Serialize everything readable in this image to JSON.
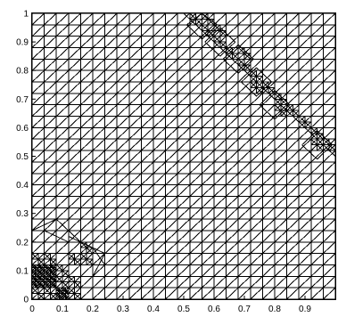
{
  "figure": {
    "x_ticks": [
      "0",
      "0.1",
      "0.2",
      "0.3",
      "0.4",
      "0.5",
      "0.6",
      "0.7",
      "0.8",
      "0.9"
    ],
    "y_ticks": [
      "0",
      "0.1",
      "0.2",
      "0.3",
      "0.4",
      "0.5",
      "0.6",
      "0.7",
      "0.8",
      "0.9",
      "1"
    ],
    "mesh": {
      "type": "triangular-mesh",
      "domain": {
        "x": [
          0,
          1
        ],
        "y": [
          0,
          1
        ]
      },
      "base_spacing": 0.04,
      "line_color": "#000000",
      "background": "#ffffff"
    },
    "refinement_regions": [
      {
        "name": "lower-left-corner",
        "center": [
          0.08,
          0.08
        ]
      },
      {
        "name": "diagonal-band",
        "from": [
          0.5,
          1.0
        ],
        "to": [
          1.0,
          0.5
        ]
      }
    ]
  }
}
